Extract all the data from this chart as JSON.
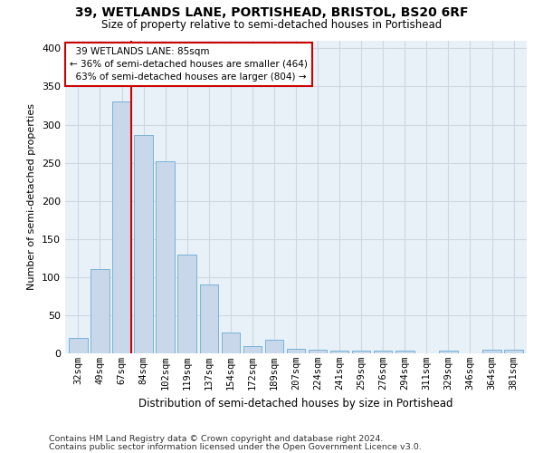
{
  "title1": "39, WETLANDS LANE, PORTISHEAD, BRISTOL, BS20 6RF",
  "title2": "Size of property relative to semi-detached houses in Portishead",
  "xlabel": "Distribution of semi-detached houses by size in Portishead",
  "ylabel": "Number of semi-detached properties",
  "categories": [
    "32sqm",
    "49sqm",
    "67sqm",
    "84sqm",
    "102sqm",
    "119sqm",
    "137sqm",
    "154sqm",
    "172sqm",
    "189sqm",
    "207sqm",
    "224sqm",
    "241sqm",
    "259sqm",
    "276sqm",
    "294sqm",
    "311sqm",
    "329sqm",
    "346sqm",
    "364sqm",
    "381sqm"
  ],
  "values": [
    20,
    110,
    330,
    287,
    252,
    130,
    90,
    27,
    10,
    18,
    6,
    5,
    4,
    4,
    3,
    3,
    0,
    3,
    0,
    5,
    5
  ],
  "bar_color": "#c8d8ea",
  "bar_edge_color": "#6aaad4",
  "pct_smaller": 36,
  "pct_smaller_count": 464,
  "pct_larger": 63,
  "pct_larger_count": 804,
  "marker_line_color": "#cc0000",
  "box_edge_color": "#cc0000",
  "ylim": [
    0,
    410
  ],
  "grid_color": "#cdd8e3",
  "footer1": "Contains HM Land Registry data © Crown copyright and database right 2024.",
  "footer2": "Contains public sector information licensed under the Open Government Licence v3.0.",
  "bg_color": "#e8f0f8"
}
